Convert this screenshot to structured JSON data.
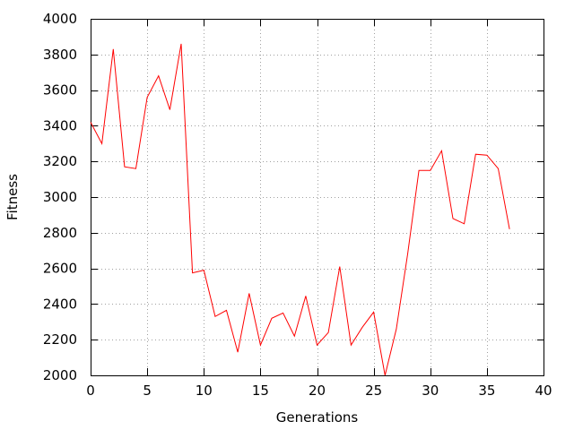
{
  "chart_data": {
    "type": "line",
    "title": "",
    "xlabel": "Generations",
    "ylabel": "Fitness",
    "xlim": [
      0,
      40
    ],
    "ylim": [
      2000,
      4000
    ],
    "xticks": [
      0,
      5,
      10,
      15,
      20,
      25,
      30,
      35,
      40
    ],
    "yticks": [
      2000,
      2200,
      2400,
      2600,
      2800,
      3000,
      3200,
      3400,
      3600,
      3800,
      4000
    ],
    "grid": true,
    "legend": "none",
    "series": [
      {
        "color": "#ff0000",
        "x": [
          0,
          1,
          2,
          3,
          4,
          5,
          6,
          7,
          8,
          9,
          10,
          11,
          12,
          13,
          14,
          15,
          16,
          17,
          18,
          19,
          20,
          21,
          22,
          23,
          24,
          25,
          26,
          27,
          28,
          29,
          30,
          31,
          32,
          33,
          34,
          35,
          36,
          37
        ],
        "values": [
          3420,
          3300,
          3830,
          3170,
          3160,
          3560,
          3680,
          3490,
          3860,
          2575,
          2590,
          2330,
          2365,
          2130,
          2460,
          2170,
          2320,
          2350,
          2220,
          2445,
          2170,
          2240,
          2610,
          2170,
          2270,
          2355,
          2000,
          2260,
          2680,
          3150,
          3150,
          3260,
          2880,
          2850,
          3240,
          3235,
          3160,
          2820
        ]
      }
    ]
  }
}
